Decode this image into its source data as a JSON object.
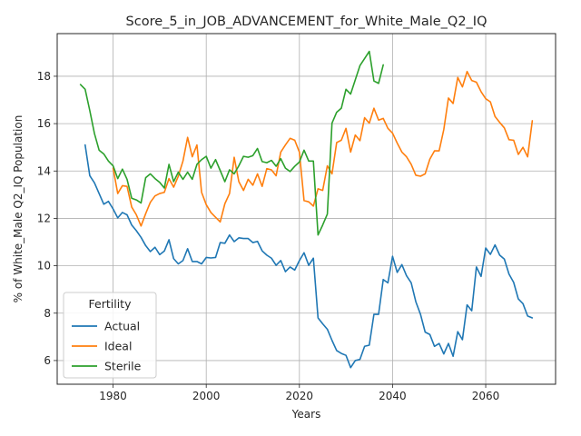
{
  "chart_data": {
    "type": "line",
    "title": "Score_5_in_JOB_ADVANCEMENT_for_White_Male_Q2_IQ",
    "xlabel": "Years",
    "ylabel": "% of White_Male Q2_IQ Population",
    "xlim": [
      1968,
      2075
    ],
    "ylim": [
      5.0,
      19.8
    ],
    "xticks": [
      1980,
      2000,
      2020,
      2040,
      2060
    ],
    "yticks": [
      6,
      8,
      10,
      12,
      14,
      16,
      18
    ],
    "grid": true,
    "legend": {
      "title": "Fertility",
      "placement": "lower-left"
    },
    "series": [
      {
        "name": "Actual",
        "color": "#1f77b4",
        "x": [
          1974,
          1975,
          1976,
          1977,
          1978,
          1979,
          1980,
          1981,
          1982,
          1983,
          1984,
          1985,
          1986,
          1987,
          1988,
          1989,
          1990,
          1991,
          1992,
          1993,
          1994,
          1995,
          1996,
          1997,
          1998,
          1999,
          2000,
          2001,
          2002,
          2003,
          2004,
          2005,
          2006,
          2007,
          2008,
          2009,
          2010,
          2011,
          2012,
          2013,
          2014,
          2015,
          2016,
          2017,
          2018,
          2019,
          2020,
          2021,
          2022,
          2023,
          2024,
          2025,
          2026,
          2027,
          2028,
          2029,
          2030,
          2031,
          2032,
          2033,
          2034,
          2035,
          2036,
          2037,
          2038,
          2039,
          2040,
          2041,
          2042,
          2043,
          2044,
          2045,
          2046,
          2047,
          2048,
          2049,
          2050,
          2051,
          2052,
          2053,
          2054,
          2055,
          2056,
          2057,
          2058,
          2059,
          2060,
          2061,
          2062,
          2063,
          2064,
          2065,
          2066,
          2067,
          2068,
          2069,
          2070
        ],
        "values": [
          15.1,
          13.8,
          13.5,
          13.05,
          12.6,
          12.72,
          12.4,
          12.02,
          12.25,
          12.15,
          11.72,
          11.48,
          11.2,
          10.85,
          10.6,
          10.78,
          10.47,
          10.62,
          11.1,
          10.3,
          10.08,
          10.22,
          10.72,
          10.18,
          10.18,
          10.08,
          10.35,
          10.33,
          10.35,
          10.98,
          10.95,
          11.3,
          11.02,
          11.18,
          11.15,
          11.15,
          10.98,
          11.03,
          10.63,
          10.45,
          10.32,
          10.02,
          10.22,
          9.75,
          9.95,
          9.82,
          10.22,
          10.55,
          10.02,
          10.32,
          7.8,
          7.55,
          7.32,
          6.85,
          6.42,
          6.3,
          6.22,
          5.7,
          6.0,
          6.05,
          6.6,
          6.65,
          7.95,
          7.95,
          9.42,
          9.28,
          10.4,
          9.72,
          10.05,
          9.58,
          9.28,
          8.48,
          7.95,
          7.2,
          7.1,
          6.6,
          6.72,
          6.28,
          6.72,
          6.18,
          7.22,
          6.88,
          8.35,
          8.1,
          9.95,
          9.55,
          10.75,
          10.48,
          10.88,
          10.45,
          10.28,
          9.65,
          9.3,
          8.6,
          8.4,
          7.88,
          7.8
        ]
      },
      {
        "name": "Ideal",
        "color": "#ff7f0e",
        "x": [
          1980,
          1981,
          1982,
          1983,
          1984,
          1985,
          1986,
          1987,
          1988,
          1989,
          1990,
          1991,
          1992,
          1993,
          1994,
          1995,
          1996,
          1997,
          1998,
          1999,
          2000,
          2001,
          2002,
          2003,
          2004,
          2005,
          2006,
          2007,
          2008,
          2009,
          2010,
          2011,
          2012,
          2013,
          2014,
          2015,
          2016,
          2017,
          2018,
          2019,
          2020,
          2021,
          2022,
          2023,
          2024,
          2025,
          2026,
          2027,
          2028,
          2029,
          2030,
          2031,
          2032,
          2033,
          2034,
          2035,
          2036,
          2037,
          2038,
          2039,
          2040,
          2041,
          2042,
          2043,
          2044,
          2045,
          2046,
          2047,
          2048,
          2049,
          2050,
          2051,
          2052,
          2053,
          2054,
          2055,
          2056,
          2057,
          2058,
          2059,
          2060,
          2061,
          2062,
          2063,
          2064,
          2065,
          2066,
          2067,
          2068,
          2069,
          2070
        ],
        "values": [
          14.12,
          13.05,
          13.38,
          13.35,
          12.48,
          12.15,
          11.68,
          12.2,
          12.68,
          12.95,
          13.05,
          13.1,
          13.68,
          13.32,
          13.78,
          14.42,
          15.42,
          14.6,
          15.1,
          13.1,
          12.58,
          12.25,
          12.05,
          11.85,
          12.62,
          13.05,
          14.58,
          13.55,
          13.18,
          13.65,
          13.4,
          13.88,
          13.35,
          14.1,
          14.05,
          13.8,
          14.8,
          15.1,
          15.38,
          15.3,
          14.8,
          12.75,
          12.7,
          12.52,
          13.25,
          13.18,
          14.22,
          13.88,
          15.2,
          15.3,
          15.8,
          14.8,
          15.52,
          15.28,
          16.25,
          16.02,
          16.65,
          16.15,
          16.22,
          15.8,
          15.6,
          15.18,
          14.8,
          14.6,
          14.28,
          13.82,
          13.78,
          13.88,
          14.5,
          14.85,
          14.85,
          15.75,
          17.08,
          16.85,
          17.95,
          17.55,
          18.2,
          17.82,
          17.75,
          17.35,
          17.05,
          16.92,
          16.3,
          16.05,
          15.82,
          15.32,
          15.3,
          14.7,
          15.0,
          14.6,
          16.12
        ]
      },
      {
        "name": "Sterile",
        "color": "#2ca02c",
        "x": [
          1973,
          1974,
          1975,
          1976,
          1977,
          1978,
          1979,
          1980,
          1981,
          1982,
          1983,
          1984,
          1985,
          1986,
          1987,
          1988,
          1989,
          1990,
          1991,
          1992,
          1993,
          1994,
          1995,
          1996,
          1997,
          1998,
          1999,
          2000,
          2001,
          2002,
          2003,
          2004,
          2005,
          2006,
          2007,
          2008,
          2009,
          2010,
          2011,
          2012,
          2013,
          2014,
          2015,
          2016,
          2017,
          2018,
          2019,
          2020,
          2021,
          2022,
          2023,
          2024,
          2025,
          2026,
          2027,
          2028,
          2029,
          2030,
          2031,
          2032,
          2033,
          2034,
          2035,
          2036,
          2037,
          2038
        ],
        "values": [
          17.65,
          17.45,
          16.55,
          15.58,
          14.88,
          14.72,
          14.42,
          14.22,
          13.68,
          14.08,
          13.65,
          12.85,
          12.78,
          12.65,
          13.72,
          13.88,
          13.68,
          13.52,
          13.28,
          14.28,
          13.55,
          13.95,
          13.65,
          13.95,
          13.65,
          14.28,
          14.48,
          14.62,
          14.12,
          14.48,
          14.02,
          13.55,
          14.05,
          13.88,
          14.22,
          14.62,
          14.58,
          14.65,
          14.95,
          14.4,
          14.35,
          14.45,
          14.2,
          14.52,
          14.12,
          13.98,
          14.2,
          14.38,
          14.88,
          14.42,
          14.42,
          11.3,
          11.72,
          12.18,
          16.02,
          16.48,
          16.65,
          17.45,
          17.25,
          17.85,
          18.45,
          18.75,
          19.05,
          17.8,
          17.7,
          18.48
        ]
      }
    ]
  }
}
